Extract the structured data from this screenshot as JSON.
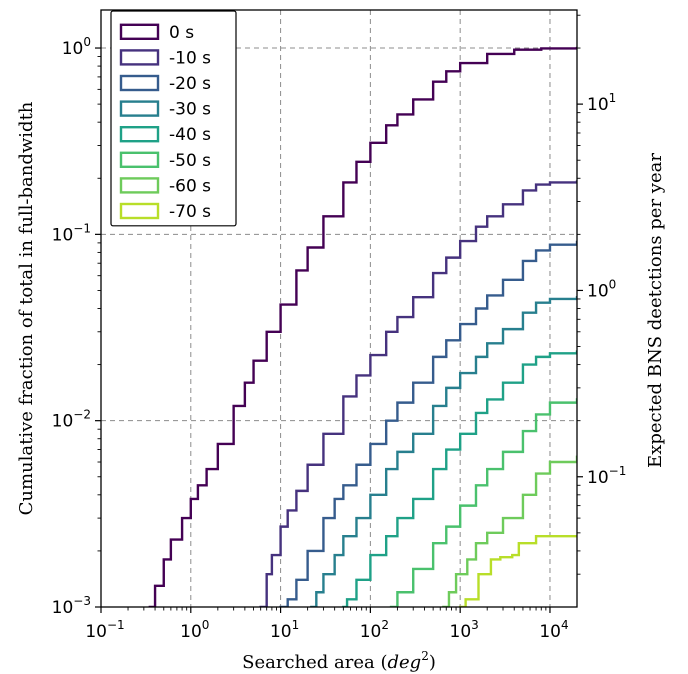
{
  "chart_data": {
    "type": "line",
    "step": true,
    "xlabel_pre": "Searched area (",
    "xlabel_var": "deg",
    "xlabel_sup": "2",
    "xlabel_post": ")",
    "ylabel": "Cumulative fraction of total in full-bandwidth",
    "y2label": "Expected BNS deetctions per year",
    "xscale": "log",
    "yscale": "log",
    "xlim": [
      0.1,
      20000
    ],
    "ylim": [
      0.001,
      1.6
    ],
    "y2lim": [
      0.02,
      32
    ],
    "grid": true,
    "legend_position": "top-left",
    "x_ticks": [
      {
        "value": 0.1,
        "base": "10",
        "exp": "−1"
      },
      {
        "value": 1,
        "base": "10",
        "exp": "0"
      },
      {
        "value": 10,
        "base": "10",
        "exp": "1"
      },
      {
        "value": 100,
        "base": "10",
        "exp": "2"
      },
      {
        "value": 1000,
        "base": "10",
        "exp": "3"
      },
      {
        "value": 10000,
        "base": "10",
        "exp": "4"
      }
    ],
    "y_ticks": [
      {
        "value": 1,
        "base": "10",
        "exp": "0"
      },
      {
        "value": 0.1,
        "base": "10",
        "exp": "−1"
      },
      {
        "value": 0.01,
        "base": "10",
        "exp": "−2"
      },
      {
        "value": 0.001,
        "base": "10",
        "exp": "−3"
      }
    ],
    "y2_ticks": [
      {
        "value": 10,
        "base": "10",
        "exp": "1"
      },
      {
        "value": 1,
        "base": "10",
        "exp": "0"
      },
      {
        "value": 0.1,
        "base": "10",
        "exp": "−1"
      }
    ],
    "series": [
      {
        "name": "0 s",
        "color": "#440154",
        "points": [
          [
            0.35,
            0.001
          ],
          [
            0.4,
            0.0013
          ],
          [
            0.5,
            0.0018
          ],
          [
            0.6,
            0.0023
          ],
          [
            0.8,
            0.003
          ],
          [
            1.0,
            0.0038
          ],
          [
            1.2,
            0.0045
          ],
          [
            1.5,
            0.0055
          ],
          [
            2,
            0.0075
          ],
          [
            3,
            0.012
          ],
          [
            4,
            0.016
          ],
          [
            5,
            0.021
          ],
          [
            7,
            0.03
          ],
          [
            10,
            0.042
          ],
          [
            15,
            0.064
          ],
          [
            20,
            0.085
          ],
          [
            30,
            0.125
          ],
          [
            50,
            0.19
          ],
          [
            70,
            0.245
          ],
          [
            100,
            0.31
          ],
          [
            150,
            0.385
          ],
          [
            200,
            0.44
          ],
          [
            300,
            0.53
          ],
          [
            500,
            0.66
          ],
          [
            700,
            0.75
          ],
          [
            1000,
            0.83
          ],
          [
            2000,
            0.93
          ],
          [
            4000,
            0.98
          ],
          [
            8000,
            0.995
          ],
          [
            20000,
            1.0
          ]
        ]
      },
      {
        "name": "-10 s",
        "color": "#46327e",
        "points": [
          [
            6,
            0.001
          ],
          [
            7,
            0.0015
          ],
          [
            8,
            0.0019
          ],
          [
            10,
            0.0027
          ],
          [
            12,
            0.0033
          ],
          [
            15,
            0.0042
          ],
          [
            20,
            0.0058
          ],
          [
            30,
            0.0085
          ],
          [
            50,
            0.0135
          ],
          [
            70,
            0.0175
          ],
          [
            100,
            0.0225
          ],
          [
            150,
            0.03
          ],
          [
            200,
            0.036
          ],
          [
            300,
            0.046
          ],
          [
            500,
            0.062
          ],
          [
            700,
            0.075
          ],
          [
            1000,
            0.092
          ],
          [
            1500,
            0.11
          ],
          [
            2000,
            0.125
          ],
          [
            3000,
            0.145
          ],
          [
            5000,
            0.172
          ],
          [
            7000,
            0.185
          ],
          [
            10000,
            0.19
          ],
          [
            20000,
            0.192
          ]
        ]
      },
      {
        "name": "-20 s",
        "color": "#365c8d",
        "points": [
          [
            10,
            0.001
          ],
          [
            12,
            0.0011
          ],
          [
            15,
            0.0014
          ],
          [
            20,
            0.002
          ],
          [
            30,
            0.003
          ],
          [
            40,
            0.0038
          ],
          [
            50,
            0.0045
          ],
          [
            70,
            0.0058
          ],
          [
            100,
            0.0075
          ],
          [
            150,
            0.01
          ],
          [
            200,
            0.0125
          ],
          [
            300,
            0.016
          ],
          [
            500,
            0.022
          ],
          [
            700,
            0.027
          ],
          [
            1000,
            0.033
          ],
          [
            1500,
            0.04
          ],
          [
            2000,
            0.047
          ],
          [
            3000,
            0.057
          ],
          [
            5000,
            0.072
          ],
          [
            7000,
            0.082
          ],
          [
            10000,
            0.088
          ],
          [
            20000,
            0.091
          ]
        ]
      },
      {
        "name": "-30 s",
        "color": "#277f8e",
        "points": [
          [
            22,
            0.001
          ],
          [
            25,
            0.0012
          ],
          [
            30,
            0.0015
          ],
          [
            40,
            0.0019
          ],
          [
            50,
            0.0024
          ],
          [
            70,
            0.003
          ],
          [
            100,
            0.004
          ],
          [
            150,
            0.0055
          ],
          [
            200,
            0.0068
          ],
          [
            300,
            0.0085
          ],
          [
            500,
            0.012
          ],
          [
            700,
            0.015
          ],
          [
            1000,
            0.018
          ],
          [
            1500,
            0.022
          ],
          [
            2000,
            0.026
          ],
          [
            3000,
            0.031
          ],
          [
            5000,
            0.038
          ],
          [
            7000,
            0.043
          ],
          [
            10000,
            0.045
          ],
          [
            20000,
            0.046
          ]
        ]
      },
      {
        "name": "-40 s",
        "color": "#1fa187",
        "points": [
          [
            50,
            0.001
          ],
          [
            55,
            0.0011
          ],
          [
            70,
            0.0014
          ],
          [
            100,
            0.0019
          ],
          [
            150,
            0.0024
          ],
          [
            200,
            0.003
          ],
          [
            300,
            0.0038
          ],
          [
            500,
            0.0055
          ],
          [
            700,
            0.007
          ],
          [
            1000,
            0.0085
          ],
          [
            1500,
            0.011
          ],
          [
            2000,
            0.013
          ],
          [
            3000,
            0.016
          ],
          [
            5000,
            0.02
          ],
          [
            7000,
            0.022
          ],
          [
            10000,
            0.023
          ],
          [
            20000,
            0.0235
          ]
        ]
      },
      {
        "name": "-50 s",
        "color": "#4ac16d",
        "points": [
          [
            170,
            0.001
          ],
          [
            200,
            0.0012
          ],
          [
            300,
            0.0016
          ],
          [
            500,
            0.0022
          ],
          [
            700,
            0.0027
          ],
          [
            1000,
            0.0035
          ],
          [
            1500,
            0.0045
          ],
          [
            2000,
            0.0055
          ],
          [
            3000,
            0.0068
          ],
          [
            5000,
            0.0088
          ],
          [
            7000,
            0.0108
          ],
          [
            10000,
            0.0125
          ],
          [
            20000,
            0.013
          ]
        ]
      },
      {
        "name": "-60 s",
        "color": "#6ecb5b",
        "points": [
          [
            650,
            0.001
          ],
          [
            750,
            0.0012
          ],
          [
            900,
            0.0015
          ],
          [
            1200,
            0.0018
          ],
          [
            1500,
            0.0022
          ],
          [
            2000,
            0.0025
          ],
          [
            3000,
            0.003
          ],
          [
            5000,
            0.004
          ],
          [
            7000,
            0.0052
          ],
          [
            10000,
            0.006
          ],
          [
            20000,
            0.0064
          ]
        ]
      },
      {
        "name": "-70 s",
        "color": "#b8de29",
        "points": [
          [
            1000,
            0.001
          ],
          [
            1150,
            0.0011
          ],
          [
            1600,
            0.0015
          ],
          [
            2200,
            0.0018
          ],
          [
            2800,
            0.00185
          ],
          [
            3800,
            0.0019
          ],
          [
            4500,
            0.0022
          ],
          [
            7000,
            0.0024
          ],
          [
            20000,
            0.0024
          ]
        ]
      }
    ]
  }
}
